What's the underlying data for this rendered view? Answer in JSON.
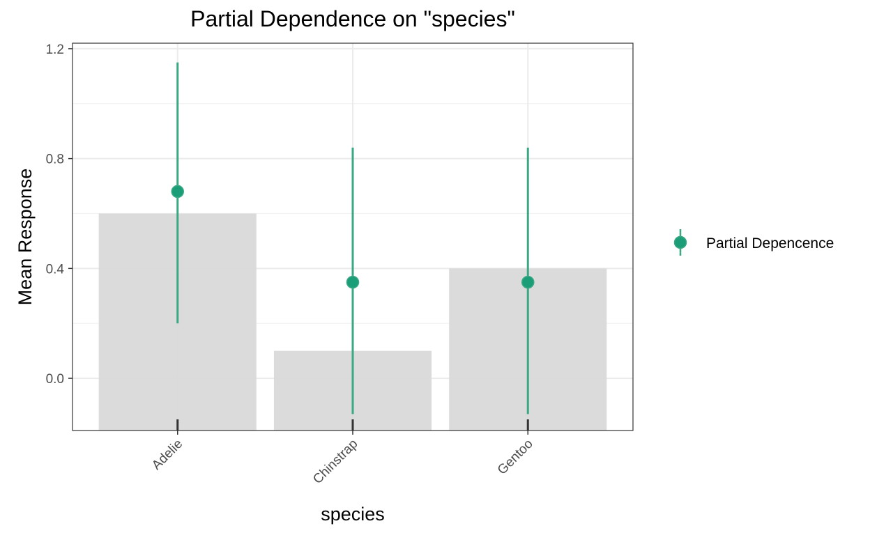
{
  "chart_data": {
    "type": "bar",
    "title": "Partial Dependence on \"species\"",
    "xlabel": "species",
    "ylabel": "Mean Response",
    "categories": [
      "Adelie",
      "Chinstrap",
      "Gentoo"
    ],
    "bar_values": [
      0.6,
      0.1,
      0.4
    ],
    "series": [
      {
        "name": "Partial Depencence",
        "type": "pointrange",
        "values": [
          0.68,
          0.35,
          0.35
        ],
        "lower": [
          0.2,
          -0.13,
          -0.13
        ],
        "upper": [
          1.15,
          0.84,
          0.84
        ]
      }
    ],
    "yticks": [
      0.0,
      0.4,
      0.8,
      1.2
    ],
    "ytick_labels": [
      "0.0",
      "0.4",
      "0.8",
      "1.2"
    ],
    "ylim": [
      -0.19,
      1.22
    ],
    "grid": true,
    "legend_position": "right",
    "colors": {
      "bar": "#d9d9d9",
      "point": "#1b9e77",
      "line": "#3aa884",
      "grid_major": "#ebebeb",
      "grid_minor": "#f3f3f3",
      "panel_border": "#333333",
      "rug": "#333333"
    }
  }
}
